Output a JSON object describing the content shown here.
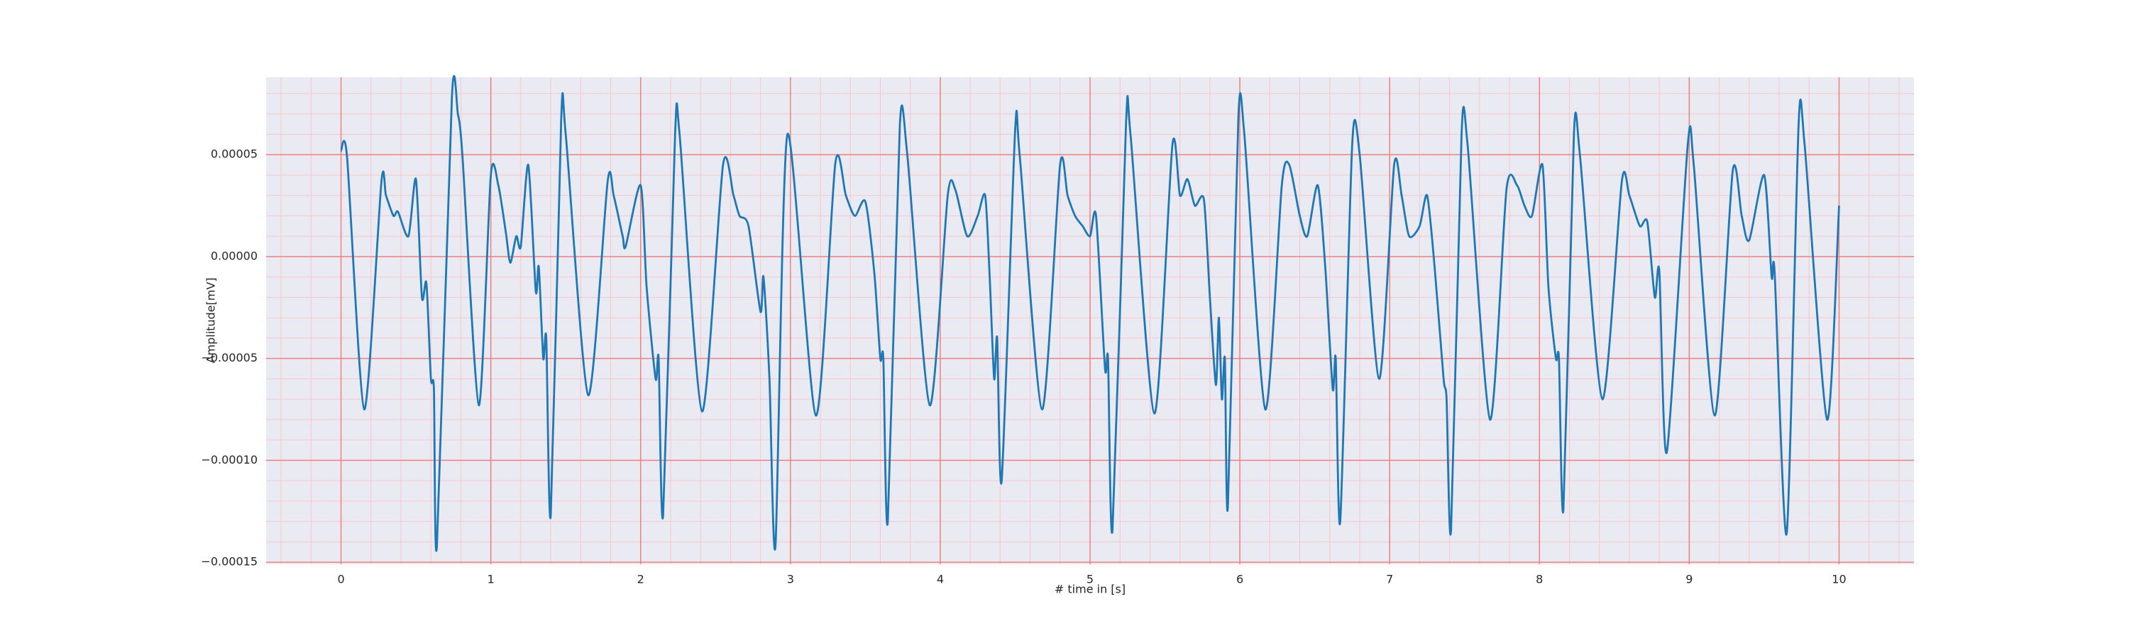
{
  "chart_data": {
    "type": "line",
    "xlabel": "# time in [s]",
    "ylabel": "Amplitude[mV]",
    "color": "#1f77b4",
    "background": "#eaeaf2",
    "grid": true,
    "grid_color": "#f08080",
    "minor_grid": true,
    "minor_grid_color": "#f7c6cc",
    "xlim": [
      -0.5,
      10.5
    ],
    "ylim": [
      -0.000151,
      8.8e-05
    ],
    "xticks": [
      0,
      1,
      2,
      3,
      4,
      5,
      6,
      7,
      8,
      9,
      10
    ],
    "yticks": [
      {
        "value": -0.00015,
        "label": "−0.00015"
      },
      {
        "value": -0.0001,
        "label": "−0.00010"
      },
      {
        "value": -5e-05,
        "label": "−0.00005"
      },
      {
        "value": 0,
        "label": "0.00000"
      },
      {
        "value": 5e-05,
        "label": "0.00005"
      }
    ],
    "xminorticks": [
      -0.4,
      -0.2,
      0.2,
      0.4,
      0.6,
      0.8,
      1.2,
      1.4,
      1.6,
      1.8,
      2.2,
      2.4,
      2.6,
      2.8,
      3.2,
      3.4,
      3.6,
      3.8,
      4.2,
      4.4,
      4.6,
      4.8,
      5.2,
      5.4,
      5.6,
      5.8,
      6.2,
      6.4,
      6.6,
      6.8,
      7.2,
      7.4,
      7.6,
      7.8,
      8.2,
      8.4,
      8.6,
      8.8,
      9.2,
      9.4,
      9.6,
      9.8,
      10.2,
      10.4
    ],
    "yminorticks": [
      -0.00014,
      -0.00013,
      -0.00012,
      -0.00011,
      -9e-05,
      -8e-05,
      -7e-05,
      -6e-05,
      -4e-05,
      -3e-05,
      -2e-05,
      -1e-05,
      1e-05,
      2e-05,
      3e-05,
      4e-05,
      6e-05,
      7e-05,
      8e-05
    ],
    "x": [
      0,
      0.04,
      0.155,
      0.27,
      0.3,
      0.35,
      0.38,
      0.45,
      0.5,
      0.54,
      0.57,
      0.6,
      0.62,
      0.64,
      0.74,
      0.78,
      0.81,
      0.92,
      1.0,
      1.05,
      1.1,
      1.13,
      1.17,
      1.2,
      1.25,
      1.3,
      1.32,
      1.35,
      1.37,
      1.4,
      1.47,
      1.5,
      1.65,
      1.78,
      1.82,
      1.88,
      1.9,
      2.0,
      2.04,
      2.1,
      2.12,
      2.15,
      2.23,
      2.26,
      2.41,
      2.55,
      2.62,
      2.66,
      2.72,
      2.8,
      2.82,
      2.86,
      2.9,
      2.98,
      3.17,
      3.3,
      3.37,
      3.43,
      3.5,
      3.56,
      3.6,
      3.62,
      3.65,
      3.73,
      3.78,
      3.93,
      4.05,
      4.1,
      4.18,
      4.25,
      4.3,
      4.33,
      4.36,
      4.38,
      4.41,
      4.5,
      4.53,
      4.68,
      4.8,
      4.85,
      4.9,
      4.95,
      5.0,
      5.04,
      5.1,
      5.12,
      5.15,
      5.24,
      5.27,
      5.43,
      5.55,
      5.6,
      5.65,
      5.7,
      5.76,
      5.8,
      5.84,
      5.86,
      5.88,
      5.9,
      5.92,
      5.99,
      6.03,
      6.17,
      6.28,
      6.33,
      6.4,
      6.45,
      6.52,
      6.57,
      6.62,
      6.64,
      6.67,
      6.75,
      6.8,
      6.93,
      7.03,
      7.08,
      7.13,
      7.2,
      7.25,
      7.3,
      7.36,
      7.38,
      7.41,
      7.48,
      7.52,
      7.67,
      7.78,
      7.85,
      7.9,
      7.95,
      8.02,
      8.06,
      8.11,
      8.13,
      8.16,
      8.23,
      8.27,
      8.42,
      8.55,
      8.6,
      8.67,
      8.72,
      8.77,
      8.8,
      8.85,
      8.99,
      9.03,
      9.17,
      9.29,
      9.35,
      9.4,
      9.5,
      9.55,
      9.57,
      9.65,
      9.73,
      9.77,
      9.92,
      10.0
    ],
    "values": [
      5.2e-05,
      4.9e-05,
      -7.5e-05,
      3.7e-05,
      3e-05,
      2e-05,
      2.2e-05,
      1e-05,
      3.8e-05,
      -2e-05,
      -1.3e-05,
      -6e-05,
      -6.5e-05,
      -0.000142,
      7.8e-05,
      7e-05,
      5e-05,
      -7.3e-05,
      4e-05,
      3.5e-05,
      1.2e-05,
      -3e-06,
      1e-05,
      5e-06,
      4.5e-05,
      -1.7e-05,
      -5e-06,
      -5e-05,
      -4e-05,
      -0.000127,
      6.8e-05,
      6e-05,
      -6.8e-05,
      3.7e-05,
      3e-05,
      1e-05,
      5e-06,
      3.5e-05,
      -1.5e-05,
      -6e-05,
      -5e-05,
      -0.000127,
      6e-05,
      6e-05,
      -7.6e-05,
      4.5e-05,
      3e-05,
      2e-05,
      1.5e-05,
      -2.7e-05,
      -1e-05,
      -6e-05,
      -0.000142,
      6e-05,
      -7.8e-05,
      4.6e-05,
      3e-05,
      2e-05,
      2.7e-05,
      -8e-06,
      -5e-05,
      -5e-05,
      -0.00013,
      6.4e-05,
      5e-05,
      -7.3e-05,
      3e-05,
      3.3e-05,
      1e-05,
      2e-05,
      3e-05,
      -1e-05,
      -6e-05,
      -4e-05,
      -0.00011,
      6.2e-05,
      5e-05,
      -7.5e-05,
      4.5e-05,
      3e-05,
      2e-05,
      1.5e-05,
      1e-05,
      2e-05,
      -5.5e-05,
      -5e-05,
      -0.000134,
      6.5e-05,
      6e-05,
      -7.7e-05,
      5.5e-05,
      3e-05,
      3.8e-05,
      2.5e-05,
      2.8e-05,
      -2e-05,
      -6.3e-05,
      -3e-05,
      -7e-05,
      -5e-05,
      -0.000123,
      6.8e-05,
      6e-05,
      -7.5e-05,
      3.5e-05,
      4.5e-05,
      2e-05,
      1e-05,
      3.5e-05,
      -5e-06,
      -6.5e-05,
      -5e-05,
      -0.00013,
      5.5e-05,
      5e-05,
      -6e-05,
      4.5e-05,
      3e-05,
      1e-05,
      1.5e-05,
      3e-05,
      -5e-06,
      -6e-05,
      -7e-05,
      -0.000134,
      6e-05,
      5.5e-05,
      -8e-05,
      3.3e-05,
      3.5e-05,
      2.5e-05,
      2e-05,
      4.5e-05,
      -1.5e-05,
      -5e-05,
      -5e-05,
      -0.000124,
      6e-05,
      5e-05,
      -7e-05,
      3.7e-05,
      3e-05,
      1.5e-05,
      1.7e-05,
      -2e-05,
      -7e-06,
      -9.6e-05,
      5.5e-05,
      4.5e-05,
      -7.8e-05,
      4.2e-05,
      2e-05,
      8e-06,
      4e-05,
      -1e-05,
      -8e-06,
      -0.000136,
      6.5e-05,
      5.5e-05,
      -8e-05,
      2.5e-05
    ]
  }
}
